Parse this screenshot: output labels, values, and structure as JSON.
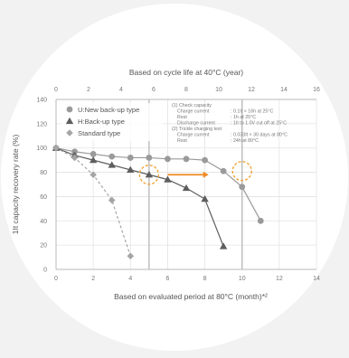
{
  "colors": {
    "background": "#f2f2f2",
    "disc": "#ffffff",
    "grid": "#e3e3e3",
    "axis": "#b8b8b8",
    "reference_line": "#bcbcbc",
    "arrow": "#f08a24",
    "highlight_circle": "#f0a030",
    "legend_bg": "#ffffff"
  },
  "chart_data": {
    "type": "line",
    "title": "",
    "xlabel": "Based on evaluated period at 80°C (month)*²",
    "ylabel": "1It capacity recovery rate (%)",
    "x2label": "Based on cycle life at 40°C (year)",
    "xlim": [
      0,
      14
    ],
    "ylim": [
      0,
      140
    ],
    "x2lim": [
      0,
      16
    ],
    "x_ticks": [
      0,
      2,
      4,
      6,
      8,
      10,
      12,
      14
    ],
    "y_ticks": [
      0,
      20,
      40,
      60,
      80,
      100,
      120,
      140
    ],
    "x2_ticks": [
      0,
      2,
      4,
      6,
      8,
      10,
      12,
      14,
      16
    ],
    "grid": true,
    "legend_position": "top-left",
    "reference_lines_x": [
      5,
      10
    ],
    "arrow": {
      "from": [
        6.0,
        78
      ],
      "to": [
        8.2,
        78
      ]
    },
    "highlights": [
      {
        "x": 5,
        "y": 78
      },
      {
        "x": 10,
        "y": 81
      }
    ],
    "series": [
      {
        "name": "U:New back-up type",
        "marker": "circle",
        "color": "#9a9a9a",
        "style": "solid",
        "x": [
          0,
          1,
          2,
          3,
          4,
          5,
          6,
          7,
          8,
          9,
          10,
          11
        ],
        "y": [
          100,
          97,
          95,
          93,
          92,
          92,
          91,
          91,
          90,
          81,
          68,
          40
        ]
      },
      {
        "name": "H:Back-up type",
        "marker": "triangle",
        "color": "#5e5e5e",
        "style": "solid",
        "x": [
          0,
          1,
          2,
          3,
          4,
          5,
          6,
          7,
          8,
          9
        ],
        "y": [
          100,
          94,
          90,
          86,
          82,
          78,
          74,
          67,
          58,
          19
        ]
      },
      {
        "name": "Standard type",
        "marker": "diamond",
        "color": "#a5a5a5",
        "style": "dashed",
        "x": [
          0,
          1,
          2,
          3,
          4
        ],
        "y": [
          100,
          92,
          78,
          57,
          11
        ]
      }
    ],
    "notes": [
      "(1) Check capacity",
      "Charge current",
      ": 0.1It × 16h at 25°C",
      "Rest",
      ": 1h at 25°C",
      "Discharge current",
      ": 1It to 1.0V cut off at 25°C",
      "(2) Trickle charging test",
      "Charge current",
      ": 0.033It × 30 days at 80°C",
      "Rest",
      ": 24h at 80°C"
    ]
  }
}
